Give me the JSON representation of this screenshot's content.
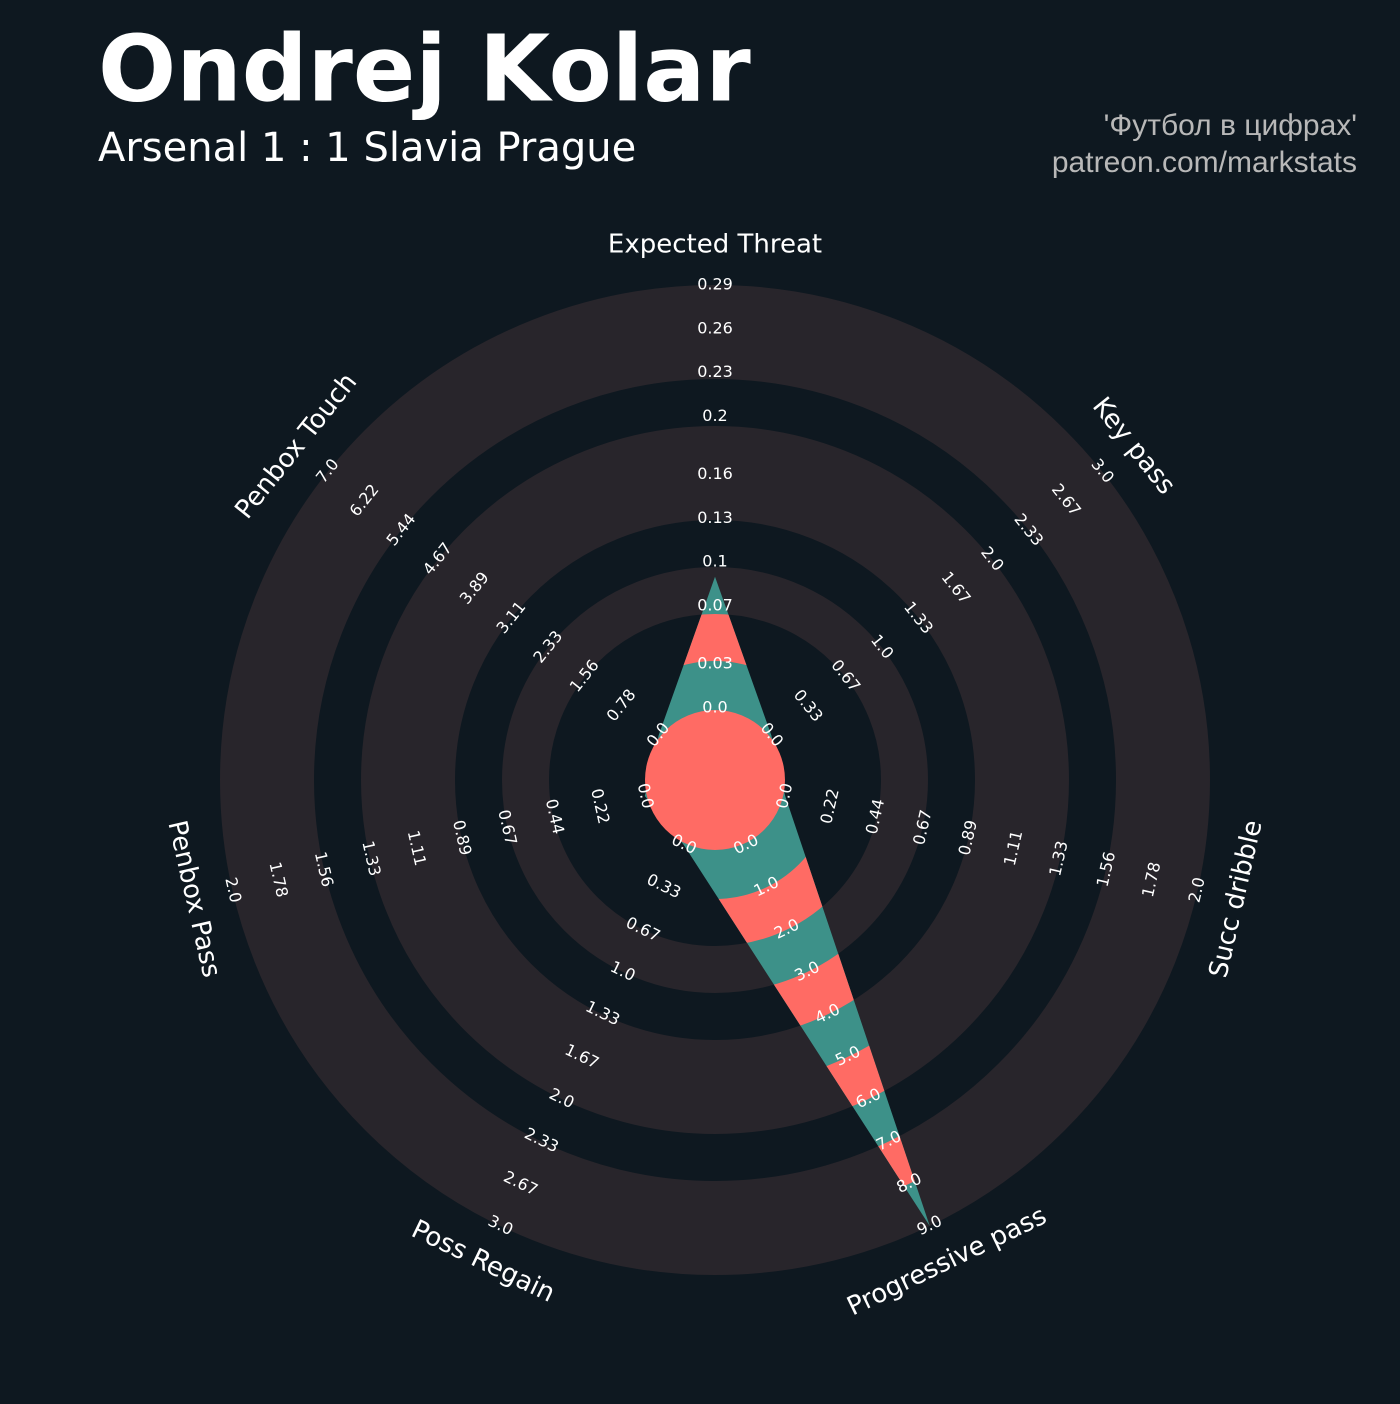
{
  "chart_data": {
    "type": "radar",
    "title": "Ondrej Kolar",
    "subtitle": "Arsenal 1 : 1 Slavia Prague",
    "credits": [
      "'Футбол в цифрах'",
      "patreon.com/markstats"
    ],
    "colors": [
      "#ff6b64",
      "#3d9189"
    ],
    "params": [
      {
        "name": "Expected Threat",
        "lim": [
          0,
          0.29
        ],
        "ticks": [
          {
            "value": 0,
            "label": "0.0"
          },
          0.03,
          0.07,
          0.1,
          0.13,
          0.16,
          0.2,
          0.23,
          0.26,
          0.29
        ]
      },
      {
        "name": "Key pass",
        "lim": [
          0,
          3
        ],
        "ticks": [
          {
            "value": 0,
            "label": "0.0"
          },
          0.33,
          0.67,
          {
            "value": 1,
            "label": "1.0"
          },
          1.33,
          1.67,
          {
            "value": 2,
            "label": "2.0"
          },
          2.33,
          2.67,
          {
            "value": 3,
            "label": "3.0"
          }
        ]
      },
      {
        "name": "Succ dribble",
        "lim": [
          0,
          2
        ],
        "ticks": [
          {
            "value": 0,
            "label": "0.0"
          },
          0.22,
          0.44,
          0.67,
          0.89,
          1.11,
          1.33,
          1.56,
          1.78,
          {
            "value": 2,
            "label": "2.0"
          }
        ]
      },
      {
        "name": "Progressive pass",
        "lim": [
          0,
          9
        ],
        "ticks": [
          {
            "value": 0,
            "label": "0.0"
          },
          {
            "value": 1,
            "label": "1.0"
          },
          {
            "value": 2,
            "label": "2.0"
          },
          {
            "value": 3,
            "label": "3.0"
          },
          {
            "value": 4,
            "label": "4.0"
          },
          {
            "value": 5,
            "label": "5.0"
          },
          {
            "value": 6,
            "label": "6.0"
          },
          {
            "value": 7,
            "label": "7.0"
          },
          {
            "value": 8,
            "label": "8.0"
          },
          {
            "value": 9,
            "label": "9.0"
          }
        ]
      },
      {
        "name": "Poss Regain",
        "lim": [
          0,
          3
        ],
        "ticks": [
          {
            "value": 0,
            "label": "0.0"
          },
          0.33,
          0.67,
          {
            "value": 1,
            "label": "1.0"
          },
          1.33,
          1.67,
          {
            "value": 2,
            "label": "2.0"
          },
          2.33,
          2.67,
          {
            "value": 3,
            "label": "3.0"
          }
        ]
      },
      {
        "name": "Penbox Pass",
        "lim": [
          0,
          2
        ],
        "ticks": [
          {
            "value": 0,
            "label": "0.0"
          },
          0.22,
          0.44,
          0.67,
          0.89,
          1.11,
          1.33,
          1.56,
          1.78,
          {
            "value": 2,
            "label": "2.0"
          }
        ]
      },
      {
        "name": "Penbox Touch",
        "lim": [
          0,
          7
        ],
        "ticks": [
          {
            "value": 0,
            "label": "0.0"
          },
          0.78,
          1.56,
          2.33,
          3.11,
          3.89,
          4.67,
          5.44,
          6.22,
          {
            "value": 7,
            "label": "7.0"
          }
        ]
      }
    ],
    "values": [
      0.09,
      0,
      0,
      9,
      0,
      0,
      0
    ]
  }
}
